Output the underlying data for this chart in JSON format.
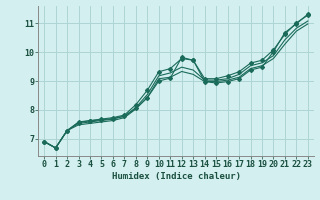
{
  "xlabel": "Humidex (Indice chaleur)",
  "xlim": [
    -0.5,
    23.5
  ],
  "ylim": [
    6.4,
    11.6
  ],
  "xticks": [
    0,
    1,
    2,
    3,
    4,
    5,
    6,
    7,
    8,
    9,
    10,
    11,
    12,
    13,
    14,
    15,
    16,
    17,
    18,
    19,
    20,
    21,
    22,
    23
  ],
  "yticks": [
    7,
    8,
    9,
    10,
    11
  ],
  "background_color": "#d4efef",
  "grid_color": "#aed4d4",
  "line_color": "#1a6b5a",
  "line1_y": [
    6.9,
    6.68,
    7.28,
    7.58,
    7.63,
    7.68,
    7.73,
    7.82,
    8.18,
    8.68,
    9.32,
    9.43,
    9.78,
    9.72,
    9.08,
    9.08,
    9.18,
    9.32,
    9.62,
    9.72,
    10.08,
    10.62,
    11.02,
    11.28
  ],
  "line2_y": [
    6.9,
    6.68,
    7.28,
    7.53,
    7.58,
    7.63,
    7.68,
    7.78,
    8.08,
    8.53,
    9.18,
    9.28,
    9.48,
    9.38,
    9.03,
    9.03,
    9.08,
    9.23,
    9.53,
    9.63,
    9.88,
    10.43,
    10.83,
    11.08
  ],
  "line3_y": [
    6.9,
    6.68,
    7.28,
    7.48,
    7.53,
    7.58,
    7.63,
    7.73,
    8.03,
    8.43,
    9.08,
    9.13,
    9.33,
    9.23,
    8.98,
    8.98,
    9.03,
    9.13,
    9.43,
    9.53,
    9.78,
    10.28,
    10.73,
    10.98
  ],
  "line4_y": [
    6.9,
    6.68,
    7.28,
    7.56,
    7.62,
    7.65,
    7.7,
    7.78,
    8.05,
    8.42,
    9.0,
    9.1,
    9.82,
    9.72,
    8.98,
    8.93,
    8.98,
    9.08,
    9.38,
    9.48,
    10.02,
    10.68,
    10.98,
    11.32
  ]
}
